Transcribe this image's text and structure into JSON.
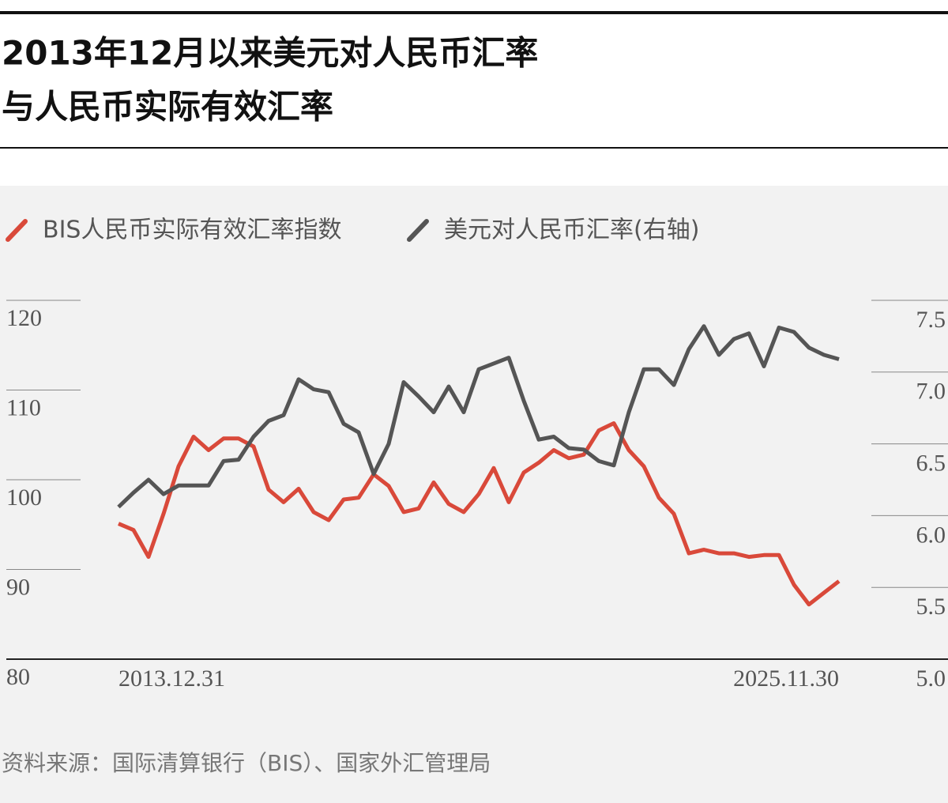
{
  "chart_data": {
    "type": "line",
    "title": [
      "2013年12月以来美元对人民币汇率",
      "与人民币实际有效汇率"
    ],
    "source": "资料来源：国际清算银行（BIS）、国家外汇管理局",
    "categories": [
      "2013.12.31",
      null,
      null,
      null,
      null,
      null,
      null,
      null,
      null,
      null,
      null,
      null,
      null,
      null,
      null,
      null,
      null,
      null,
      null,
      null,
      null,
      null,
      null,
      null,
      null,
      null,
      null,
      null,
      null,
      null,
      null,
      null,
      null,
      null,
      null,
      null,
      null,
      null,
      null,
      null,
      null,
      null,
      null,
      null,
      null,
      null,
      null,
      null,
      "2025.11.30"
    ],
    "series": [
      {
        "name": "BIS人民币实际有效汇率指数",
        "color": "#d9493a",
        "axis": "y",
        "values": [
          95.1,
          94.4,
          91.4,
          96.2,
          101.5,
          104.8,
          103.3,
          104.6,
          104.6,
          103.7,
          98.9,
          97.5,
          99.0,
          96.4,
          95.5,
          97.8,
          98.0,
          100.6,
          99.3,
          96.4,
          96.8,
          99.7,
          97.3,
          96.4,
          98.4,
          101.3,
          97.5,
          100.8,
          101.9,
          103.3,
          102.4,
          102.8,
          105.5,
          106.3,
          103.3,
          101.5,
          98.0,
          96.2,
          91.8,
          92.2,
          91.8,
          91.8,
          91.4,
          91.6,
          91.6,
          88.3,
          86.1,
          87.4,
          88.7
        ]
      },
      {
        "name": "美元对人民币汇率(右轴)",
        "color": "#555555",
        "axis": "y2",
        "values": [
          6.06,
          6.16,
          6.25,
          6.15,
          6.21,
          6.21,
          6.21,
          6.38,
          6.39,
          6.55,
          6.66,
          6.7,
          6.95,
          6.88,
          6.86,
          6.64,
          6.58,
          6.29,
          6.5,
          6.93,
          6.83,
          6.72,
          6.9,
          6.72,
          7.02,
          7.06,
          7.1,
          6.8,
          6.53,
          6.55,
          6.47,
          6.46,
          6.38,
          6.35,
          6.72,
          7.02,
          7.02,
          6.91,
          7.16,
          7.32,
          7.12,
          7.23,
          7.27,
          7.04,
          7.31,
          7.28,
          7.17,
          7.12,
          7.09
        ]
      }
    ],
    "ylim": [
      80,
      120
    ],
    "yticks": [
      80,
      90,
      100,
      110,
      120
    ],
    "y2lim": [
      5,
      7.5
    ],
    "y2ticks": [
      {
        "value": 5,
        "label": "5.0"
      },
      5.5,
      {
        "value": 6,
        "label": "6.0"
      },
      6.5,
      {
        "value": 7,
        "label": "7.0"
      },
      7.5
    ]
  }
}
